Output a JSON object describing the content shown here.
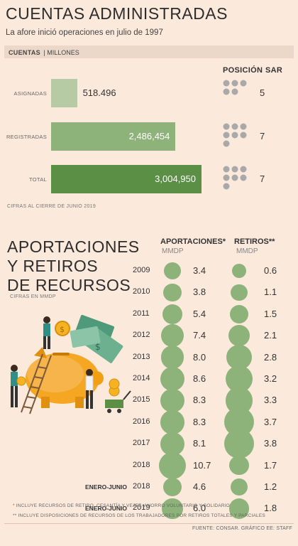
{
  "title": "CUENTAS ADMINISTRADAS",
  "subtitle": "La afore inició operaciones en julio de 1997",
  "accounts_header": {
    "label": "CUENTAS",
    "unit": "MILLONES"
  },
  "rank_header": {
    "position": "POSICIÓN",
    "sar": "SAR"
  },
  "accounts_note": "CIFRAS AL CIERRE DE JUNIO 2019",
  "section2": {
    "title_lines": [
      "APORTACIONES",
      "Y RETIROS",
      "DE RECURSOS"
    ],
    "note": "CIFRAS EN MMDP",
    "col_aport": "APORTACIONES*",
    "col_retiros": "RETIROS**",
    "unit": "MMDP"
  },
  "footnotes": [
    "* INCLUYE RECURSOS DE RETIRO, CESANTÍA Y VEJEZ, AHORRO VOLUNTARIO Y SOLIDARIO",
    "** INCLUYE DISPOSICIONES DE RECURSOS DE LOS TRABAJADORES POR RETIROS TOTALES Y PARCIALES"
  ],
  "source": "FUENTE: CONSAR. GRÁFICO EE: STAFF",
  "colors": {
    "light": "#b6cba4",
    "mid": "#8db27a",
    "dark": "#5b8f45",
    "dot": "#a9a9a9",
    "bg": "#fbe9dc"
  },
  "chart_data": [
    {
      "type": "bar",
      "categories": [
        "ASIGNADAS",
        "REGISTRADAS",
        "TOTAL"
      ],
      "values": [
        518496,
        2486454,
        3004950
      ],
      "value_labels": [
        "518.496",
        "2,486,454",
        "3,004,950"
      ],
      "ranks": [
        5,
        7,
        7
      ],
      "rank_labels": [
        "5",
        "7",
        "7"
      ]
    },
    {
      "type": "scatter",
      "categories": [
        "2009",
        "2010",
        "2011",
        "2012",
        "2013",
        "2014",
        "2015",
        "2016",
        "2017",
        "2018",
        "2018",
        "2019"
      ],
      "period_prefix": [
        "",
        "",
        "",
        "",
        "",
        "",
        "",
        "",
        "",
        "",
        "ENERO-JUNIO",
        "ENERO-JUNIO"
      ],
      "series": [
        {
          "name": "APORTACIONES*",
          "values": [
            3.4,
            3.8,
            5.4,
            7.4,
            8.0,
            8.6,
            8.3,
            8.3,
            8.1,
            10.7,
            4.6,
            6.0
          ],
          "labels": [
            "3.4",
            "3.8",
            "5.4",
            "7.4",
            "8.0",
            "8.6",
            "8.3",
            "8.3",
            "8.1",
            "10.7",
            "4.6",
            "6.0"
          ]
        },
        {
          "name": "RETIROS**",
          "values": [
            0.6,
            1.1,
            1.5,
            2.1,
            2.8,
            3.2,
            3.3,
            3.7,
            3.8,
            1.7,
            1.2,
            1.8
          ],
          "labels": [
            "0.6",
            "1.1",
            "1.5",
            "2.1",
            "2.8",
            "3.2",
            "3.3",
            "3.7",
            "3.8",
            "1.7",
            "1.2",
            "1.8"
          ]
        }
      ]
    }
  ]
}
